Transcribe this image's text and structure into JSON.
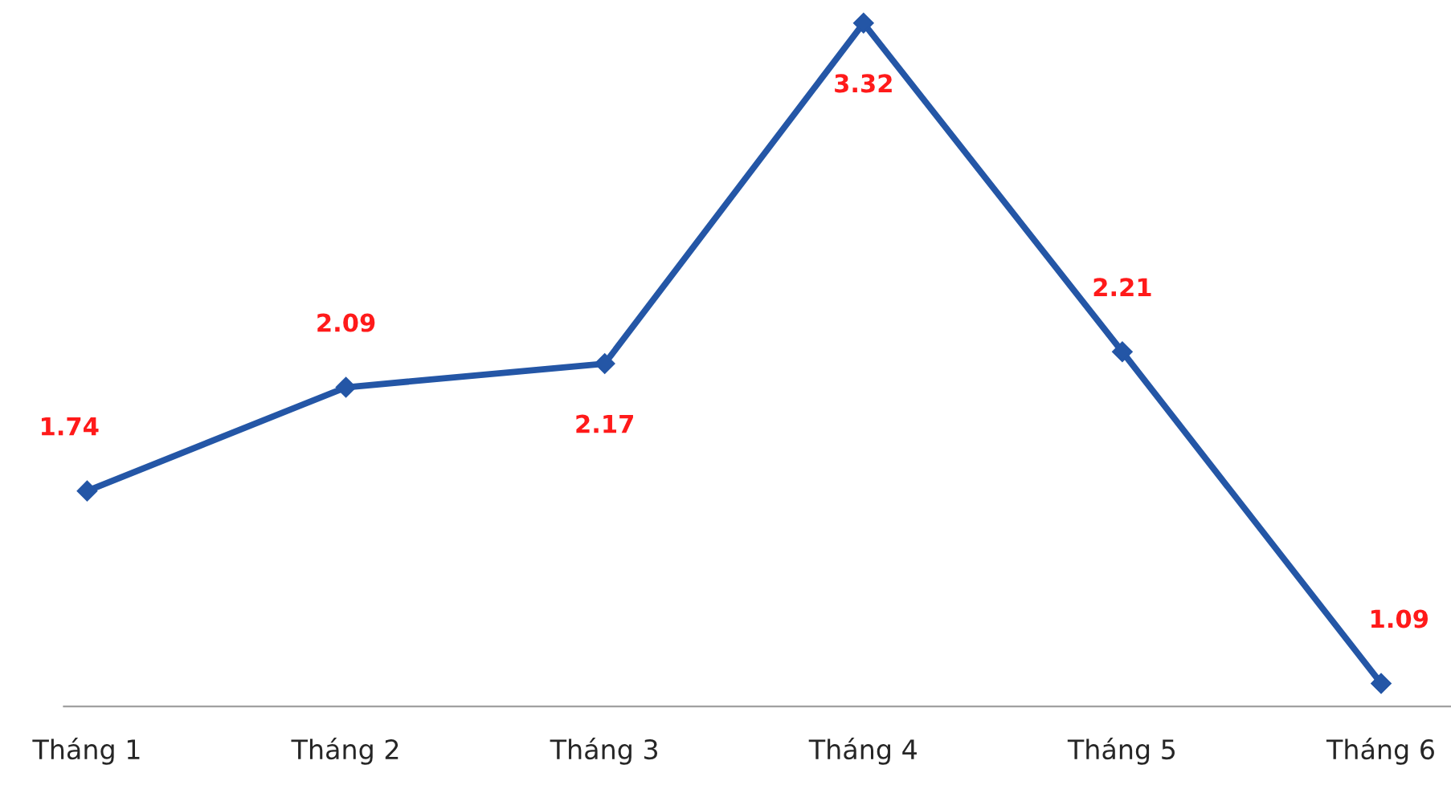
{
  "chart_data": {
    "type": "line",
    "categories": [
      "Tháng 1",
      "Tháng 2",
      "Tháng 3",
      "Tháng 4",
      "Tháng 5",
      "Tháng 6"
    ],
    "series": [
      {
        "color": "#2456a6",
        "values": [
          1.74,
          2.09,
          2.17,
          3.32,
          2.21,
          1.09
        ]
      }
    ],
    "data_labels": true,
    "marker": "diamond",
    "line_style": "solid",
    "tick_labels": "x",
    "grid": false,
    "legend": false
  }
}
